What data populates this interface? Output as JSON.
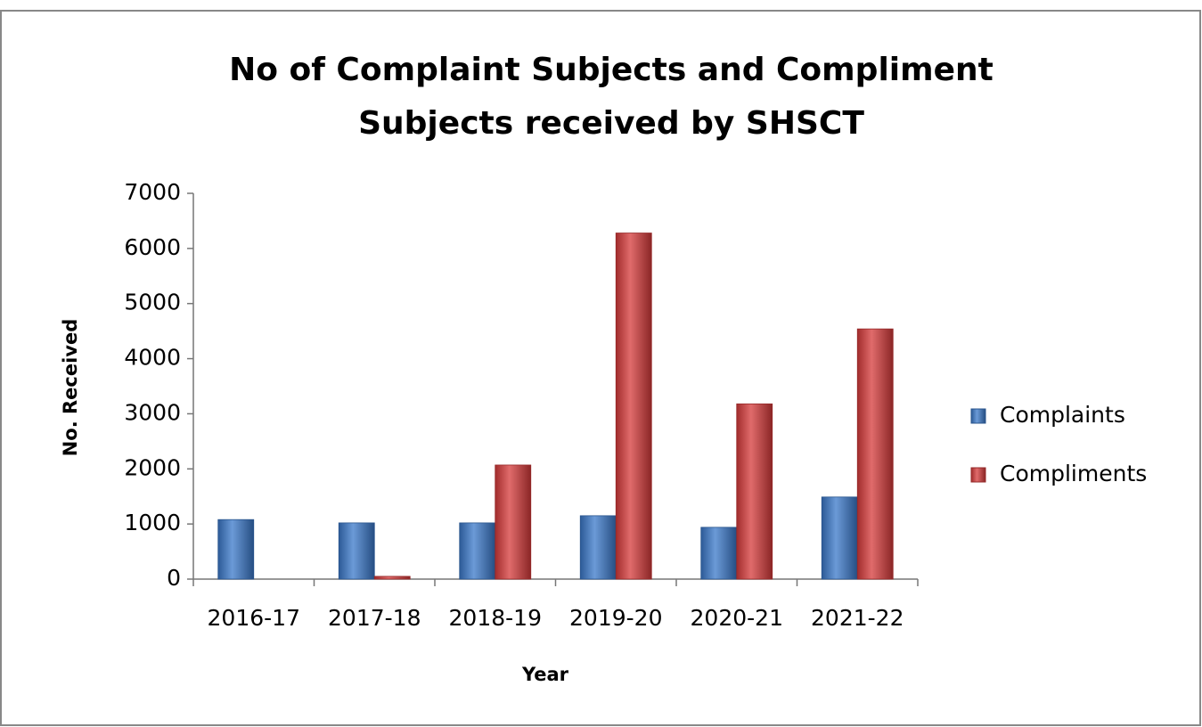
{
  "chart_data": {
    "type": "bar",
    "title": [
      "No of Complaint Subjects and Compliment",
      "Subjects received by SHSCT"
    ],
    "x_label": "Year",
    "y_label": "No. Received",
    "categories": [
      "2016-17",
      "2017-18",
      "2018-19",
      "2019-20",
      "2020-21",
      "2021-22"
    ],
    "series": [
      {
        "name": "Complaints",
        "color": "#3a78c9",
        "values": [
          1080,
          1020,
          1020,
          1150,
          940,
          1490
        ]
      },
      {
        "name": "Compliments",
        "color": "#d63a3a",
        "values": [
          0,
          50,
          2070,
          6280,
          3180,
          4540
        ]
      }
    ],
    "ylim": [
      0,
      7000
    ],
    "yticks": [
      0,
      1000,
      2000,
      3000,
      4000,
      5000,
      6000,
      7000
    ],
    "grid": false,
    "legend": "right"
  }
}
